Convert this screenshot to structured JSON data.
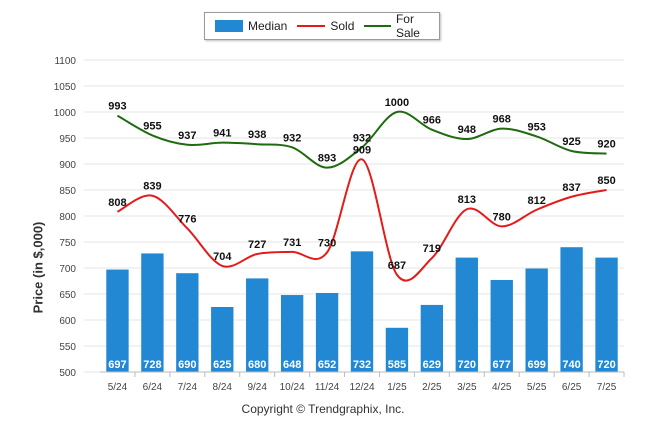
{
  "chart_data": {
    "type": "bar",
    "categories": [
      "5/24",
      "6/24",
      "7/24",
      "8/24",
      "9/24",
      "10/24",
      "11/24",
      "12/24",
      "1/25",
      "2/25",
      "3/25",
      "4/25",
      "5/25",
      "6/25",
      "7/25"
    ],
    "series": [
      {
        "name": "Median",
        "type": "bar",
        "color": "#2288d4",
        "values": [
          697,
          728,
          690,
          625,
          680,
          648,
          652,
          732,
          585,
          629,
          720,
          677,
          699,
          740,
          720
        ]
      },
      {
        "name": "Sold",
        "type": "line",
        "color": "#e31b1b",
        "values": [
          808,
          839,
          776,
          704,
          727,
          731,
          730,
          909,
          687,
          719,
          813,
          780,
          812,
          837,
          850
        ]
      },
      {
        "name": "For Sale",
        "type": "line",
        "color": "#1e6b10",
        "values": [
          993,
          955,
          937,
          941,
          938,
          932,
          893,
          932,
          1000,
          966,
          948,
          968,
          953,
          925,
          920
        ]
      }
    ],
    "ylabel": "Price (in $,000)",
    "ylim": [
      500,
      1100
    ],
    "yticks": [
      500,
      550,
      600,
      650,
      700,
      750,
      800,
      850,
      900,
      950,
      1000,
      1050,
      1100
    ],
    "grid": true,
    "legend": "top-center"
  },
  "legend": {
    "median": "Median",
    "sold": "Sold",
    "for_sale": "For Sale"
  },
  "footer": {
    "copyright": "Copyright © Trendgraphix, Inc."
  }
}
